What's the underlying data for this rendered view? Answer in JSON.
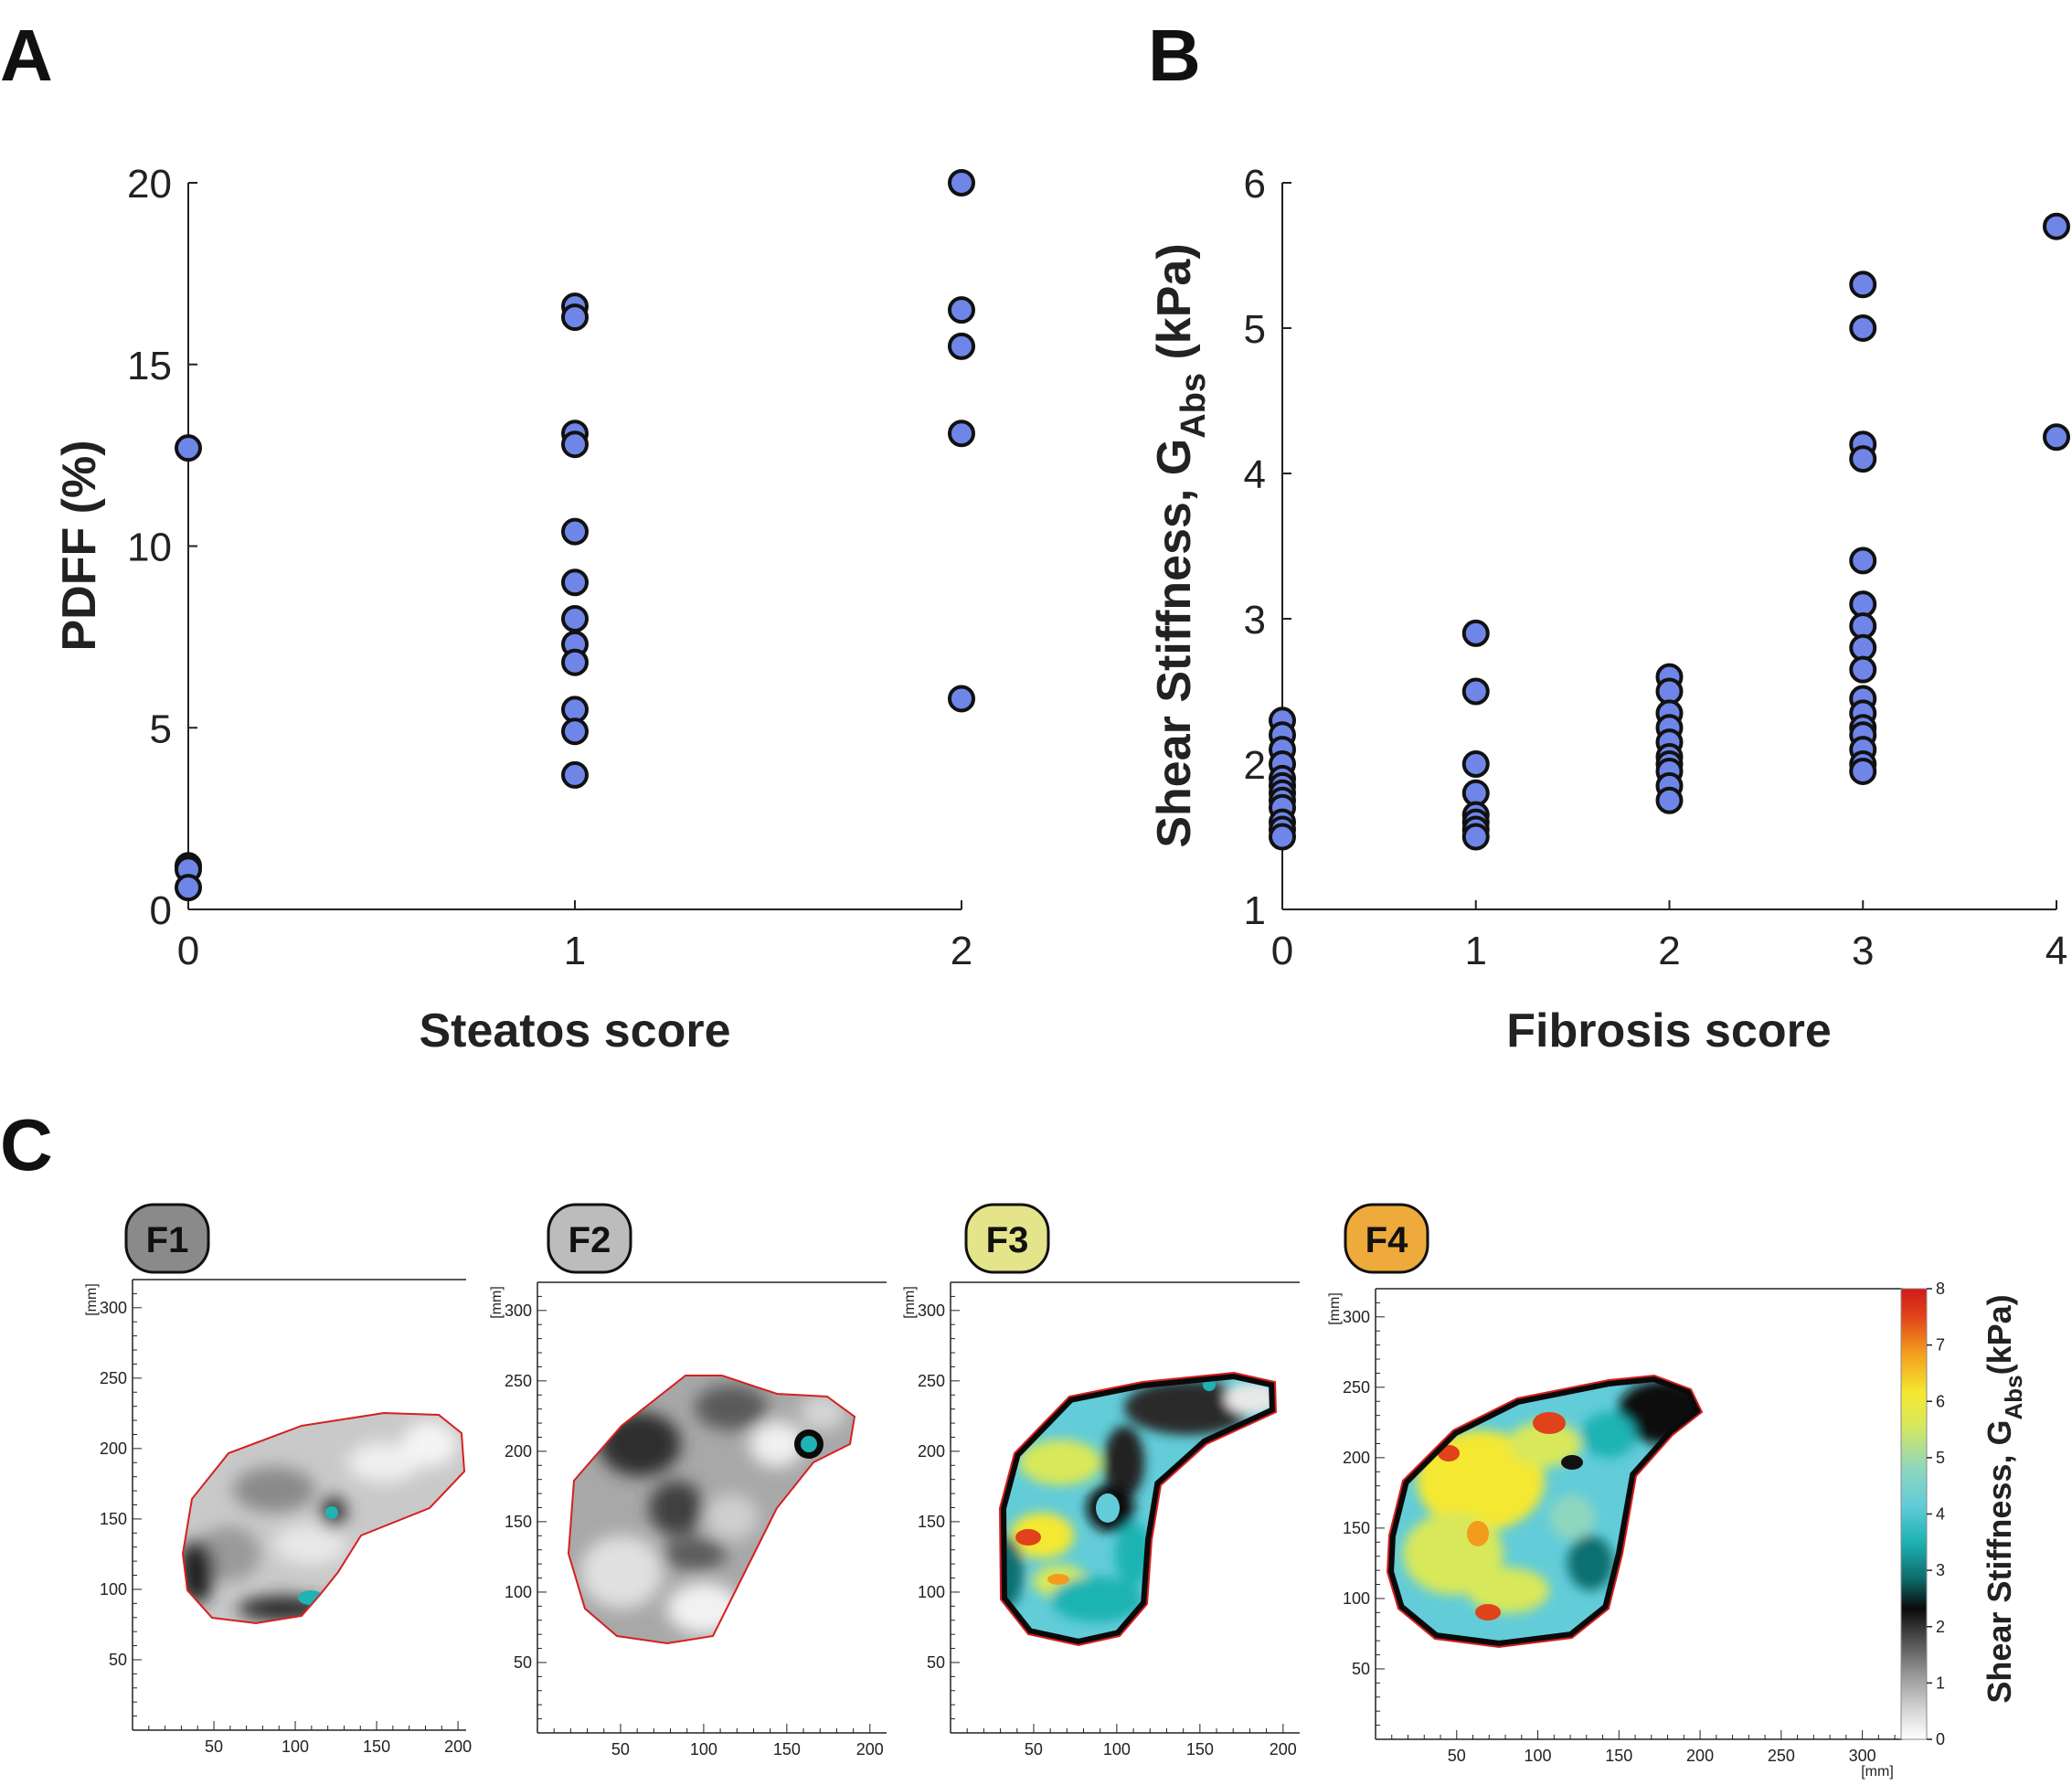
{
  "panels": {
    "A": "A",
    "B": "B",
    "C": "C"
  },
  "colors": {
    "marker_fill": "#6f86e8",
    "marker_edge": "#111111",
    "axis": "#222222",
    "outline": "#d62020"
  },
  "chart_data": [
    {
      "id": "A",
      "type": "scatter",
      "title": "",
      "xlabel": "Steatos score",
      "ylabel": "PDFF (%)",
      "xlim": [
        0,
        2
      ],
      "ylim": [
        0,
        20
      ],
      "xticks": [
        0,
        1,
        2
      ],
      "yticks": [
        0,
        5,
        10,
        15,
        20
      ],
      "series": [
        {
          "name": "PDFF",
          "points": [
            {
              "x": 0,
              "y": 12.7
            },
            {
              "x": 0,
              "y": 1.2
            },
            {
              "x": 0,
              "y": 1.1
            },
            {
              "x": 0,
              "y": 0.6
            },
            {
              "x": 1,
              "y": 16.6
            },
            {
              "x": 1,
              "y": 16.3
            },
            {
              "x": 1,
              "y": 13.1
            },
            {
              "x": 1,
              "y": 12.8
            },
            {
              "x": 1,
              "y": 10.4
            },
            {
              "x": 1,
              "y": 9.0
            },
            {
              "x": 1,
              "y": 8.0
            },
            {
              "x": 1,
              "y": 7.3
            },
            {
              "x": 1,
              "y": 6.8
            },
            {
              "x": 1,
              "y": 5.5
            },
            {
              "x": 1,
              "y": 4.9
            },
            {
              "x": 1,
              "y": 3.7
            },
            {
              "x": 2,
              "y": 20.0
            },
            {
              "x": 2,
              "y": 16.5
            },
            {
              "x": 2,
              "y": 15.5
            },
            {
              "x": 2,
              "y": 13.1
            },
            {
              "x": 2,
              "y": 5.8
            }
          ]
        }
      ]
    },
    {
      "id": "B",
      "type": "scatter",
      "title": "",
      "xlabel": "Fibrosis score",
      "ylabel_main": "Shear  Stiffness, G",
      "ylabel_sub": "Abs",
      "ylabel_unit": " (kPa)",
      "xlim": [
        0,
        4
      ],
      "ylim": [
        1,
        6
      ],
      "xticks": [
        0,
        1,
        2,
        3,
        4
      ],
      "yticks": [
        1,
        2,
        3,
        4,
        5,
        6
      ],
      "series": [
        {
          "name": "Shear stiffness",
          "points": [
            {
              "x": 0,
              "y": 2.3
            },
            {
              "x": 0,
              "y": 2.2
            },
            {
              "x": 0,
              "y": 2.1
            },
            {
              "x": 0,
              "y": 2.0
            },
            {
              "x": 0,
              "y": 1.9
            },
            {
              "x": 0,
              "y": 1.85
            },
            {
              "x": 0,
              "y": 1.8
            },
            {
              "x": 0,
              "y": 1.75
            },
            {
              "x": 0,
              "y": 1.7
            },
            {
              "x": 0,
              "y": 1.6
            },
            {
              "x": 0,
              "y": 1.55
            },
            {
              "x": 0,
              "y": 1.5
            },
            {
              "x": 1,
              "y": 2.9
            },
            {
              "x": 1,
              "y": 2.5
            },
            {
              "x": 1,
              "y": 2.0
            },
            {
              "x": 1,
              "y": 1.8
            },
            {
              "x": 1,
              "y": 1.65
            },
            {
              "x": 1,
              "y": 1.6
            },
            {
              "x": 1,
              "y": 1.55
            },
            {
              "x": 1,
              "y": 1.5
            },
            {
              "x": 2,
              "y": 2.6
            },
            {
              "x": 2,
              "y": 2.5
            },
            {
              "x": 2,
              "y": 2.35
            },
            {
              "x": 2,
              "y": 2.25
            },
            {
              "x": 2,
              "y": 2.15
            },
            {
              "x": 2,
              "y": 2.05
            },
            {
              "x": 2,
              "y": 2.0
            },
            {
              "x": 2,
              "y": 1.95
            },
            {
              "x": 2,
              "y": 1.85
            },
            {
              "x": 2,
              "y": 1.75
            },
            {
              "x": 3,
              "y": 5.3
            },
            {
              "x": 3,
              "y": 5.0
            },
            {
              "x": 3,
              "y": 4.2
            },
            {
              "x": 3,
              "y": 4.1
            },
            {
              "x": 3,
              "y": 3.4
            },
            {
              "x": 3,
              "y": 3.1
            },
            {
              "x": 3,
              "y": 2.95
            },
            {
              "x": 3,
              "y": 2.8
            },
            {
              "x": 3,
              "y": 2.65
            },
            {
              "x": 3,
              "y": 2.45
            },
            {
              "x": 3,
              "y": 2.35
            },
            {
              "x": 3,
              "y": 2.25
            },
            {
              "x": 3,
              "y": 2.2
            },
            {
              "x": 3,
              "y": 2.1
            },
            {
              "x": 3,
              "y": 2.0
            },
            {
              "x": 3,
              "y": 1.95
            },
            {
              "x": 4,
              "y": 5.7
            },
            {
              "x": 4,
              "y": 4.25
            }
          ]
        }
      ]
    }
  ],
  "maps": {
    "unit": "[mm]",
    "items": [
      {
        "badge": "F1",
        "badge_color": "#8a8a8a",
        "xticks": [
          50,
          100,
          150,
          200
        ],
        "yticks": [
          50,
          100,
          150,
          200,
          250,
          300
        ]
      },
      {
        "badge": "F2",
        "badge_color": "#bcbcbc",
        "xticks": [
          50,
          100,
          150,
          200
        ],
        "yticks": [
          50,
          100,
          150,
          200,
          250,
          300
        ]
      },
      {
        "badge": "F3",
        "badge_color": "#e4e48a",
        "xticks": [
          50,
          100,
          150,
          200
        ],
        "yticks": [
          50,
          100,
          150,
          200,
          250,
          300
        ]
      },
      {
        "badge": "F4",
        "badge_color": "#eeaa3a",
        "xticks": [
          50,
          100,
          150,
          200,
          250,
          300
        ],
        "yticks": [
          50,
          100,
          150,
          200,
          250,
          300
        ]
      }
    ],
    "colorbar": {
      "ticks": [
        "0",
        "1",
        "2",
        "3",
        "4",
        "5",
        "6",
        "7",
        "8"
      ],
      "label_main": "Shear  Stiffness, G",
      "label_sub": "Abs",
      "label_unit": "(kPa)",
      "stops": [
        "#ffffff",
        "#d9d9d9",
        "#9a9a9a",
        "#505050",
        "#0a0a0a",
        "#0f6f6f",
        "#1fb3b3",
        "#62ccd8",
        "#8fd6bf",
        "#d8e85a",
        "#f5e830",
        "#f39b1c",
        "#e0421a",
        "#d11a1a"
      ]
    }
  }
}
